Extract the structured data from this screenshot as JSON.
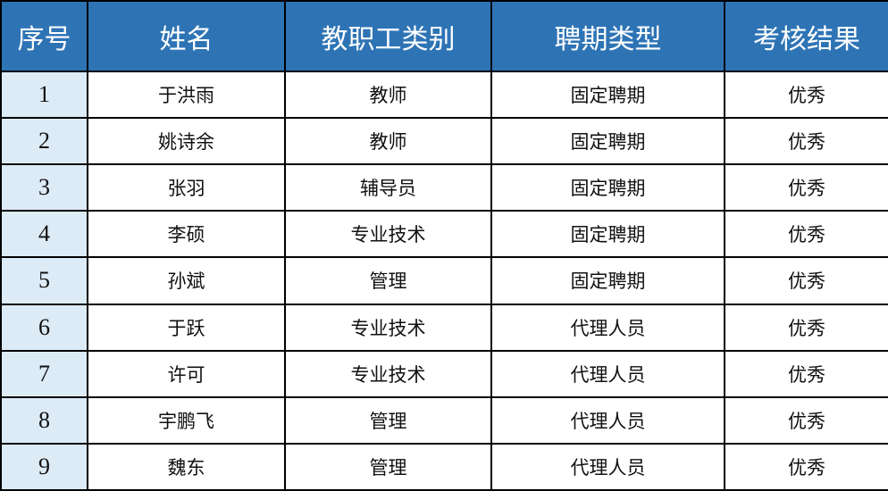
{
  "colors": {
    "header_bg": "#2E74B5",
    "header_text": "#FFFFFF",
    "index_bg": "#DDEBF7"
  },
  "headers": [
    "序号",
    "姓名",
    "教职工类别",
    "聘期类型",
    "考核结果"
  ],
  "rows": [
    [
      "1",
      "于洪雨",
      "教师",
      "固定聘期",
      "优秀"
    ],
    [
      "2",
      "姚诗余",
      "教师",
      "固定聘期",
      "优秀"
    ],
    [
      "3",
      "张羽",
      "辅导员",
      "固定聘期",
      "优秀"
    ],
    [
      "4",
      "李硕",
      "专业技术",
      "固定聘期",
      "优秀"
    ],
    [
      "5",
      "孙斌",
      "管理",
      "固定聘期",
      "优秀"
    ],
    [
      "6",
      "于跃",
      "专业技术",
      "代理人员",
      "优秀"
    ],
    [
      "7",
      "许可",
      "专业技术",
      "代理人员",
      "优秀"
    ],
    [
      "8",
      "宇鹏飞",
      "管理",
      "代理人员",
      "优秀"
    ],
    [
      "9",
      "魏东",
      "管理",
      "代理人员",
      "优秀"
    ]
  ]
}
